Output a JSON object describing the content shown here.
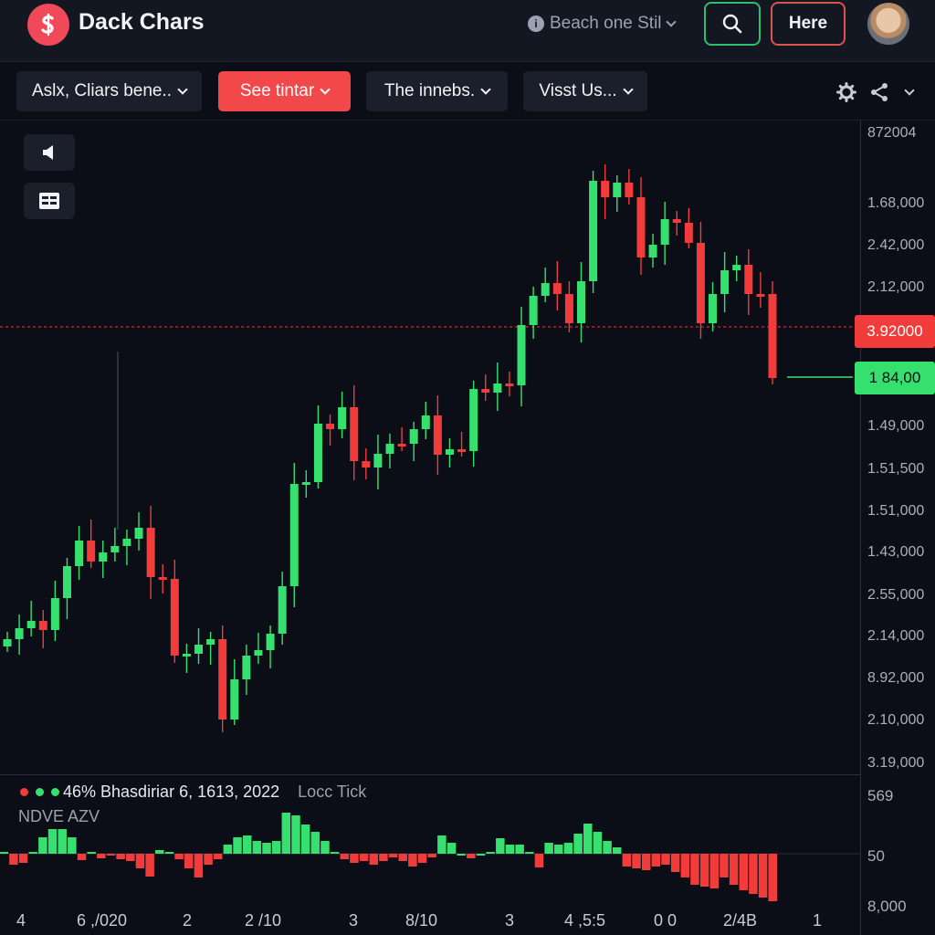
{
  "header": {
    "app_title": "Dack Chars",
    "info_text": "Beach one Stil",
    "here_label": "Here",
    "logo_icon": "dollar-icon",
    "avatar_icon": "user-avatar"
  },
  "toolbar": {
    "buttons": [
      {
        "label": "Aslx, Cliars bene.."
      },
      {
        "label": "See tintar"
      },
      {
        "label": "The innebs."
      },
      {
        "label": "Visst Us..."
      }
    ],
    "icons": [
      "gear-icon",
      "share-icon",
      "chevron-down-icon"
    ]
  },
  "side_tools": [
    "speaker-icon",
    "layout-icon"
  ],
  "colors": {
    "bullish": "#35e06f",
    "bearish": "#f23b3b",
    "background": "#0b0e16"
  },
  "chart_data": {
    "type": "candlestick",
    "price_axis_labels": [
      "872004",
      "1.68,000",
      "2.42,000",
      "2.12,000",
      "1.49,000",
      "1.51,500",
      "1.51,000",
      "1.43,000",
      "2.55,000",
      "2.14,000",
      "8.92,000",
      "2.10,000",
      "3.19,000"
    ],
    "current_price_marker": "3.92000",
    "last_price_marker": "1 84,00",
    "legend": {
      "text": "46% Bhasdiriar 6, 1613, 2022",
      "extra": "Locc Tick"
    },
    "x_labels": [
      "4",
      "6 ,/020",
      "2",
      "2 /10",
      "3",
      "8/10",
      "3",
      "4 ,5:5",
      "0 0",
      "2/4B",
      "1"
    ]
  },
  "volume": {
    "title": "NDVE AZV",
    "axis_labels": [
      "569",
      "50",
      "8,000"
    ]
  }
}
